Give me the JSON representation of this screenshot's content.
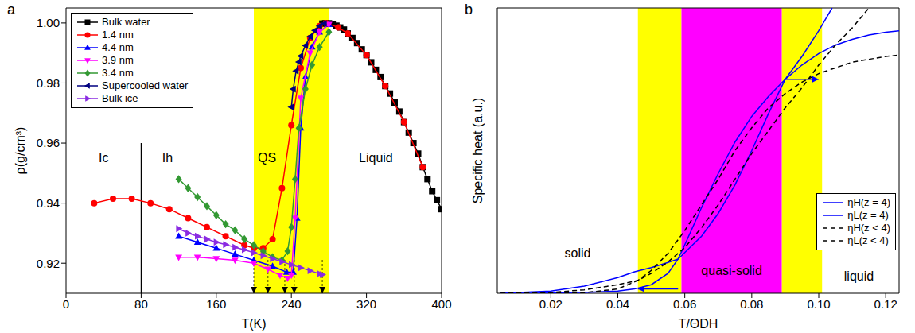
{
  "chart_data": [
    {
      "type": "line",
      "panel_label": "a",
      "x_label": "T(K)",
      "y_label": "ρ(g/cm³)",
      "xlim": [
        0,
        400
      ],
      "xticks": [
        0,
        80,
        160,
        240,
        320,
        400
      ],
      "ylim": [
        0.91,
        1.005
      ],
      "yticks": [
        0.92,
        0.94,
        0.96,
        0.98,
        {
          "value": 1,
          "label": "1.00"
        }
      ],
      "legend": "upper left",
      "bands": [
        {
          "from": 200,
          "to": 280,
          "color": "#ffff00"
        }
      ],
      "lines": [
        {
          "from": [
            80,
            0.91
          ],
          "to": [
            80,
            0.96
          ],
          "color": "#000000",
          "line_style": "solid"
        }
      ],
      "arrows": [
        {
          "from": [
            200,
            0.921
          ],
          "to": [
            200,
            0.91
          ],
          "color": "#000000",
          "line_style": "dotted"
        },
        {
          "from": [
            215,
            0.921
          ],
          "to": [
            215,
            0.91
          ],
          "color": "#000000",
          "line_style": "dotted"
        },
        {
          "from": [
            233,
            0.921
          ],
          "to": [
            233,
            0.91
          ],
          "color": "#000000",
          "line_style": "dotted"
        },
        {
          "from": [
            243,
            0.921
          ],
          "to": [
            243,
            0.91
          ],
          "color": "#000000",
          "line_style": "dotted"
        },
        {
          "from": [
            273,
            0.921
          ],
          "to": [
            273,
            0.91
          ],
          "color": "#000000",
          "line_style": "dotted"
        }
      ],
      "annotations": [
        {
          "text": "Ic",
          "x": 40,
          "y": 0.955
        },
        {
          "text": "Ih",
          "x": 108,
          "y": 0.955
        },
        {
          "text": "QS",
          "x": 214,
          "y": 0.955
        },
        {
          "text": "Liquid",
          "x": 330,
          "y": 0.955
        }
      ],
      "series": [
        {
          "name": "Bulk water",
          "color": "#000000",
          "marker": "square",
          "line_style": "solid",
          "x": [
            273,
            276,
            280,
            284,
            288,
            292,
            296,
            300,
            305,
            310,
            315,
            320,
            325,
            330,
            335,
            340,
            345,
            350,
            355,
            360,
            365,
            370,
            375,
            380,
            385,
            390,
            395,
            400
          ],
          "values": [
            0.9998,
            0.9999,
            0.9999,
            0.9997,
            0.9991,
            0.9985,
            0.9978,
            0.9965,
            0.995,
            0.9933,
            0.9912,
            0.9893,
            0.9869,
            0.9844,
            0.982,
            0.979,
            0.9765,
            0.9735,
            0.9705,
            0.967,
            0.9635,
            0.96,
            0.9565,
            0.952,
            0.948,
            0.944,
            0.941,
            0.938
          ]
        },
        {
          "name": "1.4 nm",
          "color": "#ff0000",
          "marker": "circle",
          "line_style": "solid",
          "x": [
            30,
            50,
            70,
            90,
            110,
            130,
            150,
            170,
            190,
            200,
            210,
            220,
            230,
            240,
            250,
            260,
            270,
            277,
            290,
            300,
            320,
            340,
            360,
            380
          ],
          "values": [
            0.94,
            0.9415,
            0.9415,
            0.94,
            0.938,
            0.935,
            0.932,
            0.929,
            0.926,
            0.925,
            0.925,
            0.928,
            0.945,
            0.966,
            0.985,
            0.995,
            0.999,
            1.0,
            0.9985,
            0.9965,
            0.9893,
            0.979,
            0.967,
            0.952
          ]
        },
        {
          "name": "4.4 nm",
          "color": "#0000ff",
          "marker": "triangle-up",
          "line_style": "solid",
          "x": [
            120,
            140,
            160,
            180,
            200,
            220,
            235,
            242,
            246,
            250,
            255,
            262,
            270,
            280
          ],
          "values": [
            0.929,
            0.927,
            0.925,
            0.923,
            0.921,
            0.919,
            0.917,
            0.917,
            0.935,
            0.965,
            0.982,
            0.992,
            0.997,
            0.9995
          ]
        },
        {
          "name": "3.9 nm",
          "color": "#ff00ff",
          "marker": "triangle-down",
          "line_style": "solid",
          "x": [
            120,
            140,
            160,
            180,
            200,
            215,
            228,
            236,
            240,
            244,
            250,
            260,
            270,
            280
          ],
          "values": [
            0.922,
            0.922,
            0.9215,
            0.921,
            0.92,
            0.918,
            0.916,
            0.915,
            0.916,
            0.935,
            0.975,
            0.99,
            0.997,
            0.9995
          ]
        },
        {
          "name": "3.4 nm",
          "color": "#339933",
          "marker": "diamond",
          "line_style": "solid",
          "x": [
            120,
            130,
            140,
            150,
            160,
            170,
            180,
            190,
            200,
            210,
            220,
            230,
            236,
            240,
            244,
            248,
            255,
            262,
            270,
            280
          ],
          "values": [
            0.948,
            0.945,
            0.942,
            0.939,
            0.936,
            0.933,
            0.931,
            0.928,
            0.926,
            0.924,
            0.922,
            0.921,
            0.924,
            0.932,
            0.948,
            0.965,
            0.978,
            0.986,
            0.992,
            0.997
          ]
        },
        {
          "name": "Supercooled water",
          "color": "#000080",
          "marker": "triangle-left",
          "line_style": "solid",
          "x": [
            240,
            242,
            245,
            248,
            250,
            255,
            260,
            265,
            270,
            275
          ],
          "values": [
            0.972,
            0.978,
            0.984,
            0.987,
            0.989,
            0.9925,
            0.9955,
            0.9975,
            0.999,
            0.9998
          ]
        },
        {
          "name": "Bulk ice",
          "color": "#8a2be2",
          "marker": "triangle-right",
          "line_style": "solid",
          "x": [
            120,
            130,
            140,
            150,
            160,
            170,
            180,
            190,
            200,
            210,
            220,
            230,
            240,
            250,
            260,
            270,
            273
          ],
          "values": [
            0.9315,
            0.93,
            0.929,
            0.928,
            0.927,
            0.9262,
            0.9253,
            0.9245,
            0.9235,
            0.9225,
            0.9215,
            0.9205,
            0.9195,
            0.9185,
            0.9175,
            0.9165,
            0.9162
          ]
        }
      ]
    },
    {
      "type": "line",
      "panel_label": "b",
      "x_label": "T/ΘDH",
      "y_label": "Specific heat (a.u.)",
      "xlim": [
        0.004,
        0.124
      ],
      "xticks": [
        0.02,
        0.04,
        0.06,
        0.08,
        {
          "value": 0.1,
          "label": "0.10"
        },
        0.12
      ],
      "ylim": [
        0,
        1
      ],
      "tick_labels": "x",
      "legend": "lower right",
      "bands": [
        {
          "from": 0.046,
          "to": 0.059,
          "color": "#ffff00"
        },
        {
          "from": 0.059,
          "to": 0.089,
          "color": "#ff00ff"
        },
        {
          "from": 0.089,
          "to": 0.101,
          "color": "#ffff00"
        }
      ],
      "arrows": [
        {
          "from": [
            0.09,
            0.75
          ],
          "to": [
            0.1,
            0.75
          ],
          "color": "#0000ff",
          "line_style": "solid"
        },
        {
          "from": [
            0.058,
            0.015
          ],
          "to": [
            0.046,
            0.015
          ],
          "color": "#0000ff",
          "line_style": "solid"
        }
      ],
      "annotations": [
        {
          "text": "solid",
          "x": 0.028,
          "y": 0.14
        },
        {
          "text": "quasi-solid",
          "x": 0.074,
          "y": 0.08
        },
        {
          "text": "liquid",
          "x": 0.112,
          "y": 0.06
        }
      ],
      "series": [
        {
          "name": "ηH(z = 4)",
          "color": "#0000ff",
          "marker": "none",
          "line_style": "solid",
          "x": [
            0.005,
            0.02,
            0.03,
            0.04,
            0.045,
            0.05,
            0.055,
            0.058,
            0.06,
            0.065,
            0.07,
            0.075,
            0.08,
            0.085,
            0.09,
            0.095,
            0.1,
            0.104
          ],
          "values": [
            0,
            0.001,
            0.003,
            0.008,
            0.015,
            0.03,
            0.07,
            0.12,
            0.17,
            0.3,
            0.42,
            0.53,
            0.62,
            0.69,
            0.75,
            0.83,
            0.92,
            1.0
          ]
        },
        {
          "name": "ηL(z = 4)",
          "color": "#0000ff",
          "marker": "none",
          "line_style": "solid",
          "x": [
            0.005,
            0.02,
            0.03,
            0.04,
            0.045,
            0.05,
            0.055,
            0.058,
            0.065,
            0.07,
            0.075,
            0.08,
            0.085,
            0.09,
            0.095,
            0.1,
            0.105,
            0.11,
            0.115,
            0.12,
            0.124
          ],
          "values": [
            0,
            0.008,
            0.025,
            0.055,
            0.075,
            0.09,
            0.108,
            0.12,
            0.2,
            0.28,
            0.38,
            0.5,
            0.63,
            0.75,
            0.8,
            0.84,
            0.87,
            0.89,
            0.905,
            0.915,
            0.92
          ]
        },
        {
          "name": "ηH(z < 4)",
          "color": "#000000",
          "marker": "none",
          "line_style": "dashed",
          "x": [
            0.005,
            0.03,
            0.04,
            0.046,
            0.05,
            0.055,
            0.06,
            0.065,
            0.07,
            0.075,
            0.08,
            0.085,
            0.09,
            0.095,
            0.1,
            0.105,
            0.11,
            0.115
          ],
          "values": [
            0,
            0.002,
            0.015,
            0.045,
            0.07,
            0.11,
            0.16,
            0.23,
            0.31,
            0.4,
            0.49,
            0.57,
            0.65,
            0.72,
            0.8,
            0.87,
            0.93,
            1.0
          ]
        },
        {
          "name": "ηL(z < 4)",
          "color": "#000000",
          "marker": "none",
          "line_style": "dashed",
          "x": [
            0.005,
            0.02,
            0.03,
            0.04,
            0.046,
            0.05,
            0.055,
            0.06,
            0.065,
            0.07,
            0.075,
            0.08,
            0.085,
            0.09,
            0.095,
            0.1,
            0.105,
            0.11,
            0.115,
            0.12,
            0.124
          ],
          "values": [
            0,
            0.003,
            0.012,
            0.03,
            0.045,
            0.08,
            0.14,
            0.22,
            0.31,
            0.4,
            0.5,
            0.58,
            0.65,
            0.7,
            0.74,
            0.77,
            0.79,
            0.81,
            0.82,
            0.83,
            0.835
          ]
        }
      ]
    }
  ]
}
